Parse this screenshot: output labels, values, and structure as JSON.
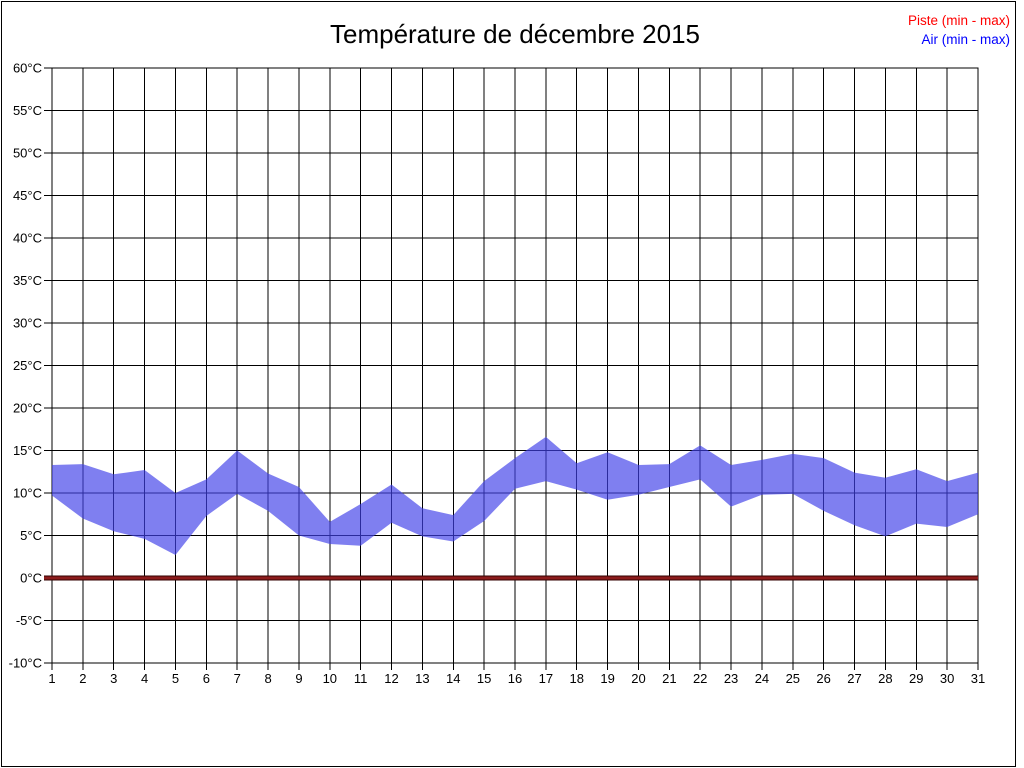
{
  "title": "Température de décembre 2015",
  "legend": {
    "items": [
      {
        "label": "Piste (min - max)",
        "color": "#ff0000"
      },
      {
        "label": "Air (min - max)",
        "color": "#0000ff"
      }
    ]
  },
  "chart_data": {
    "type": "area",
    "title": "Température de décembre 2015",
    "xlabel": "",
    "ylabel": "",
    "x": [
      1,
      2,
      3,
      4,
      5,
      6,
      7,
      8,
      9,
      10,
      11,
      12,
      13,
      14,
      15,
      16,
      17,
      18,
      19,
      20,
      21,
      22,
      23,
      24,
      25,
      26,
      27,
      28,
      29,
      30,
      31
    ],
    "x_ticks": [
      "1",
      "2",
      "3",
      "4",
      "5",
      "6",
      "7",
      "8",
      "9",
      "10",
      "11",
      "12",
      "13",
      "14",
      "15",
      "16",
      "17",
      "18",
      "19",
      "20",
      "21",
      "22",
      "23",
      "24",
      "25",
      "26",
      "27",
      "28",
      "29",
      "30",
      "31"
    ],
    "ylim": [
      -10,
      60
    ],
    "ytick_step": 5,
    "ytick_suffix": "°C",
    "y_ticks": [
      "-10°C",
      "-5°C",
      "0°C",
      "5°C",
      "10°C",
      "15°C",
      "20°C",
      "25°C",
      "30°C",
      "35°C",
      "40°C",
      "45°C",
      "50°C",
      "55°C",
      "60°C"
    ],
    "grid": true,
    "legend_position": "top-right",
    "series": [
      {
        "name": "Piste (min - max)",
        "style": "minmax-line",
        "color_core": "#8c1c1c",
        "color_edge": "#330202",
        "min": [
          0,
          0,
          0,
          0,
          0,
          0,
          0,
          0,
          0,
          0,
          0,
          0,
          0,
          0,
          0,
          0,
          0,
          0,
          0,
          0,
          0,
          0,
          0,
          0,
          0,
          0,
          0,
          0,
          0,
          0,
          0
        ],
        "max": [
          0,
          0,
          0,
          0,
          0,
          0,
          0,
          0,
          0,
          0,
          0,
          0,
          0,
          0,
          0,
          0,
          0,
          0,
          0,
          0,
          0,
          0,
          0,
          0,
          0,
          0,
          0,
          0,
          0,
          0,
          0
        ]
      },
      {
        "name": "Air (min - max)",
        "style": "minmax-band",
        "fill": "rgba(64,64,232,0.67)",
        "min": [
          9.7,
          7.0,
          5.5,
          4.6,
          2.7,
          7.3,
          9.9,
          7.9,
          5.0,
          4.0,
          3.8,
          6.5,
          4.9,
          4.3,
          6.7,
          10.5,
          11.4,
          10.4,
          9.2,
          9.8,
          10.7,
          11.6,
          8.4,
          9.8,
          9.9,
          7.9,
          6.2,
          4.9,
          6.4,
          6.0,
          7.5
        ],
        "max": [
          13.3,
          13.4,
          12.2,
          12.7,
          10.0,
          11.6,
          15.0,
          12.3,
          10.7,
          6.6,
          8.7,
          11.0,
          8.2,
          7.4,
          11.4,
          14.1,
          16.6,
          13.5,
          14.8,
          13.3,
          13.4,
          15.6,
          13.3,
          13.9,
          14.6,
          14.1,
          12.4,
          11.8,
          12.8,
          11.4,
          12.4
        ]
      }
    ]
  }
}
